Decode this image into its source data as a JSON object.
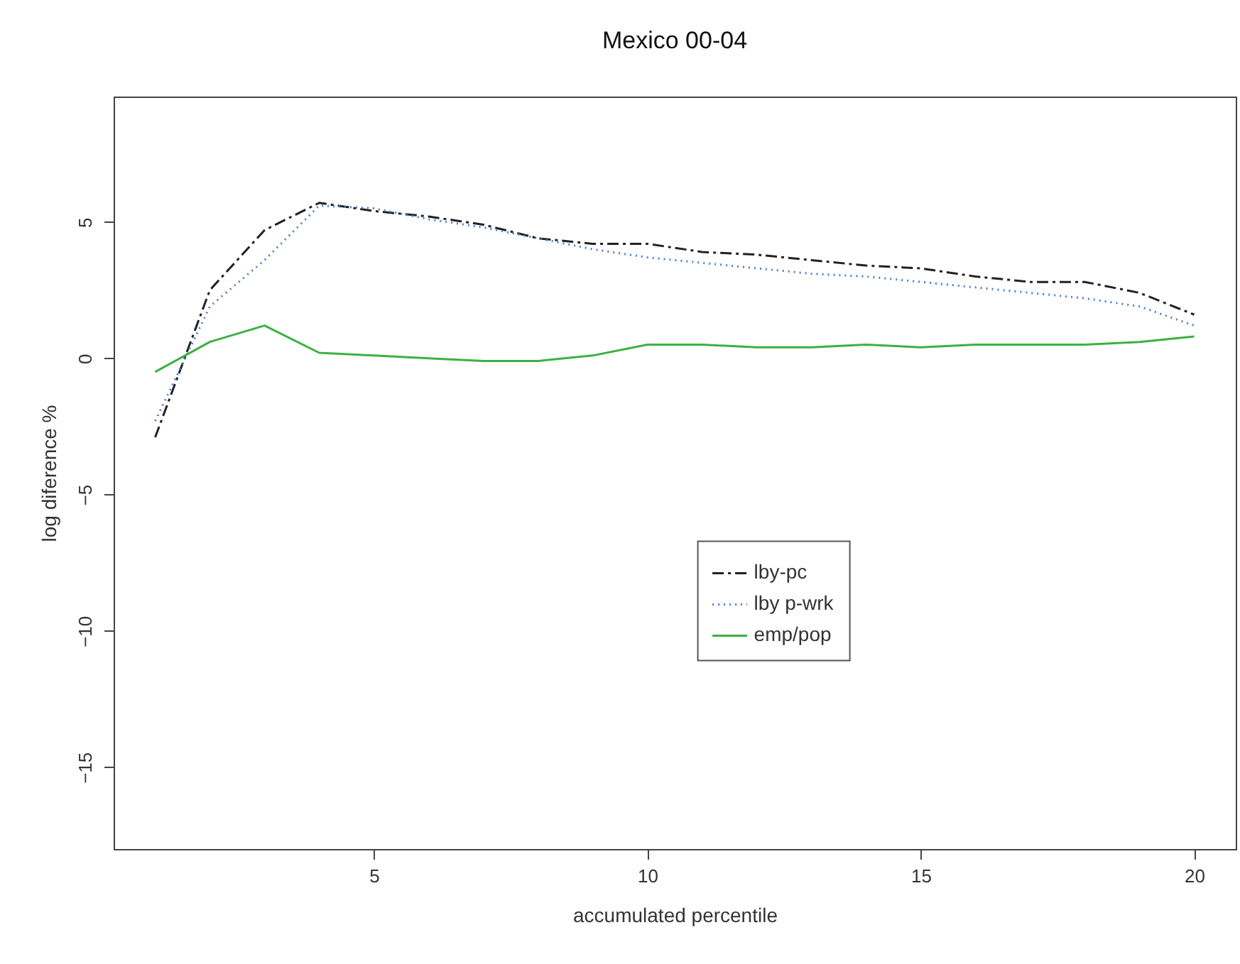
{
  "chart_data": {
    "type": "line",
    "title": "Mexico 00-04",
    "xlabel": "accumulated percentile",
    "ylabel": "log diference %",
    "x": [
      1,
      2,
      3,
      4,
      5,
      6,
      7,
      8,
      9,
      10,
      11,
      12,
      13,
      14,
      15,
      16,
      17,
      18,
      19,
      20
    ],
    "series": [
      {
        "name": "lby-pc",
        "color": "#222222",
        "line_style": "dashed",
        "values": [
          -2.9,
          2.5,
          4.7,
          5.7,
          5.4,
          5.2,
          4.9,
          4.4,
          4.2,
          4.2,
          3.9,
          3.8,
          3.6,
          3.4,
          3.3,
          3.0,
          2.8,
          2.8,
          2.4,
          1.6
        ]
      },
      {
        "name": "lby p-wrk",
        "color": "#4a7fd4",
        "line_style": "dotted",
        "values": [
          -2.3,
          1.9,
          3.6,
          5.6,
          5.5,
          5.1,
          4.8,
          4.4,
          4.0,
          3.7,
          3.5,
          3.3,
          3.1,
          3.0,
          2.8,
          2.6,
          2.4,
          2.2,
          1.9,
          1.2
        ]
      },
      {
        "name": "emp/pop",
        "color": "#3cb043",
        "line_style": "solid",
        "values": [
          -0.5,
          0.6,
          1.2,
          0.2,
          0.1,
          0.0,
          -0.1,
          -0.1,
          0.1,
          0.5,
          0.5,
          0.4,
          0.4,
          0.5,
          0.4,
          0.5,
          0.5,
          0.5,
          0.6,
          0.8
        ]
      }
    ],
    "xlim": [
      0.24,
      20.76
    ],
    "xticks": [
      5,
      10,
      15,
      20
    ],
    "ylim": [
      -18,
      9.6
    ],
    "yticks": [
      -15,
      -10,
      -5,
      0,
      5
    ],
    "legend": "right",
    "grid": false
  }
}
